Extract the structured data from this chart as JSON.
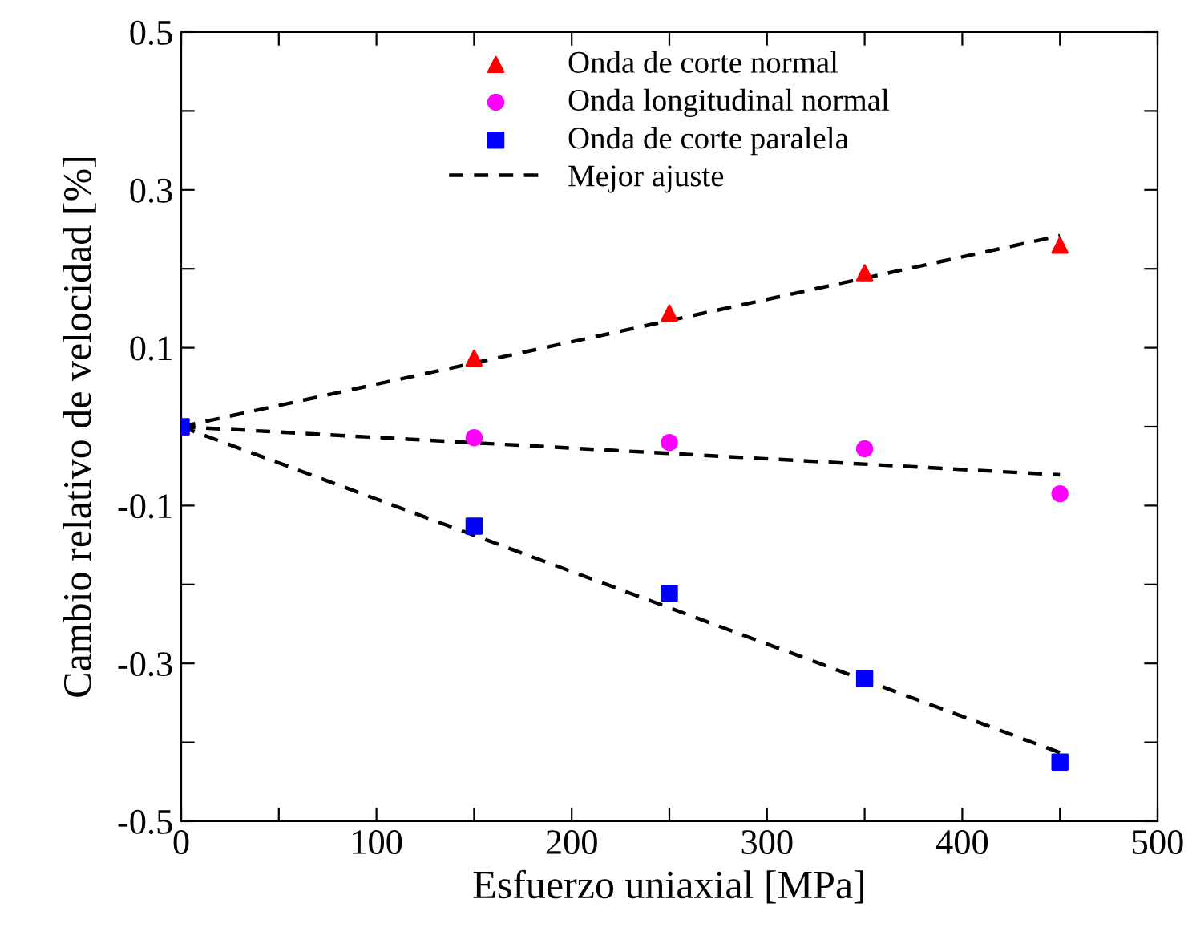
{
  "chart_data": {
    "type": "scatter",
    "xlabel": "Esfuerzo uniaxial [MPa]",
    "ylabel": "Cambio relativo de velocidad [%]",
    "xlim": [
      0,
      500
    ],
    "ylim": [
      -0.5,
      0.5
    ],
    "xticks": [
      0,
      {
        "value": 50,
        "label": null
      },
      100,
      {
        "value": 150,
        "label": null
      },
      200,
      {
        "value": 250,
        "label": null
      },
      300,
      {
        "value": 350,
        "label": null
      },
      400,
      {
        "value": 450,
        "label": null
      },
      500
    ],
    "yticks": [
      -0.5,
      {
        "value": -0.4,
        "label": null
      },
      -0.3,
      {
        "value": -0.2,
        "label": null
      },
      -0.1,
      {
        "value": 0,
        "label": null
      },
      0.1,
      {
        "value": 0.2,
        "label": null
      },
      0.3,
      {
        "value": 0.4,
        "label": null
      },
      0.5
    ],
    "grid": false,
    "legend": "top",
    "series": [
      {
        "name": "Onda de corte normal",
        "marker": "triangle",
        "color": "#ff0000",
        "x": [
          0,
          150,
          250,
          350,
          450
        ],
        "values": [
          0,
          0.087,
          0.144,
          0.195,
          0.23
        ]
      },
      {
        "name": "Onda longitudinal normal",
        "marker": "circle",
        "color": "#ff00ff",
        "x": [
          150,
          250,
          350,
          450
        ],
        "values": [
          -0.014,
          -0.02,
          -0.028,
          -0.085
        ]
      },
      {
        "name": "Onda de corte paralela",
        "marker": "square",
        "color": "#0000ff",
        "x": [
          0,
          150,
          250,
          350,
          450
        ],
        "values": [
          0,
          -0.126,
          -0.211,
          -0.319,
          -0.425
        ]
      },
      {
        "name": "Mejor ajuste",
        "type": "line",
        "line_style": "dashed",
        "marker": "none",
        "color": "#000000",
        "x": [
          0,
          450
        ],
        "values": [
          0,
          0.242
        ]
      },
      {
        "type": "line",
        "line_style": "dashed",
        "marker": "none",
        "color": "#000000",
        "x": [
          0,
          450
        ],
        "values": [
          0,
          -0.061
        ]
      },
      {
        "type": "line",
        "line_style": "dashed",
        "marker": "none",
        "color": "#000000",
        "x": [
          0,
          450
        ],
        "values": [
          0,
          -0.413
        ]
      }
    ]
  }
}
